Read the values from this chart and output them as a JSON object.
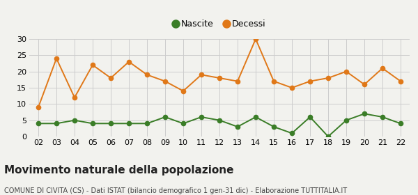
{
  "years": [
    "02",
    "03",
    "04",
    "05",
    "06",
    "07",
    "08",
    "09",
    "10",
    "11",
    "12",
    "13",
    "14",
    "15",
    "16",
    "17",
    "18",
    "19",
    "20",
    "21",
    "22"
  ],
  "nascite": [
    4,
    4,
    5,
    4,
    4,
    4,
    4,
    6,
    4,
    6,
    5,
    3,
    6,
    3,
    1,
    6,
    0,
    5,
    7,
    6,
    4
  ],
  "decessi": [
    9,
    24,
    12,
    22,
    18,
    23,
    19,
    17,
    14,
    19,
    18,
    17,
    30,
    17,
    15,
    17,
    18,
    20,
    16,
    21,
    17
  ],
  "nascite_color": "#3a7d27",
  "decessi_color": "#e07818",
  "bg_color": "#f2f2ee",
  "grid_color": "#cccccc",
  "ylim": [
    0,
    30
  ],
  "yticks": [
    0,
    5,
    10,
    15,
    20,
    25,
    30
  ],
  "title": "Movimento naturale della popolazione",
  "subtitle": "COMUNE DI CIVITA (CS) - Dati ISTAT (bilancio demografico 1 gen-31 dic) - Elaborazione TUTTITALIA.IT",
  "legend_nascite": "Nascite",
  "legend_decessi": "Decessi",
  "marker_size": 4.5,
  "linewidth": 1.4,
  "title_fontsize": 11,
  "subtitle_fontsize": 7,
  "tick_fontsize": 8
}
